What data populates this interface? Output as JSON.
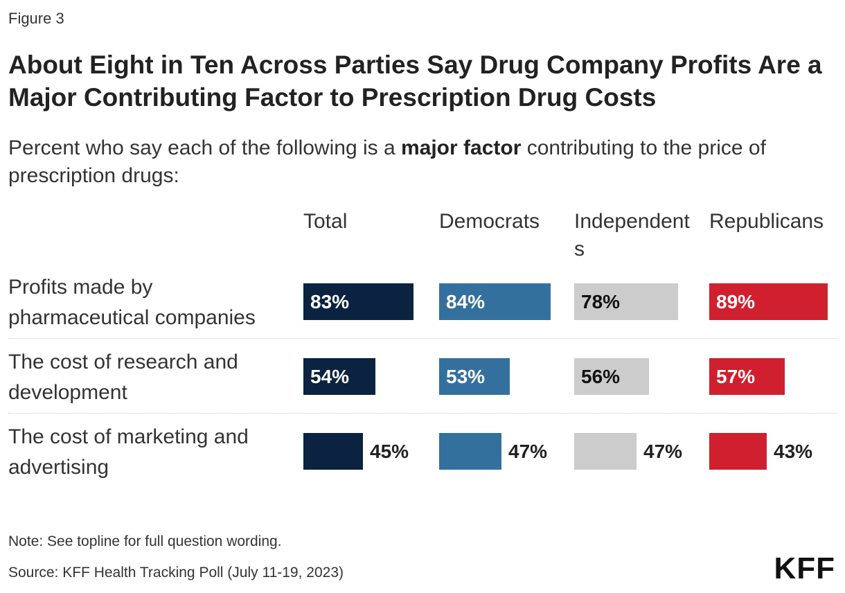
{
  "figure_label": "Figure 3",
  "title": "About Eight in Ten Across Parties Say Drug Company Profits Are a Major Contributing Factor to Prescription Drug Costs",
  "subtitle": {
    "before": "Percent who say each of the following is a ",
    "bold": "major factor",
    "after": " contributing to the price of prescription drugs:"
  },
  "note": "Note: See topline for full question wording.",
  "source": "Source: KFF Health Tracking Poll (July 11-19, 2023)",
  "logo": "KFF",
  "chart_data": {
    "type": "bar",
    "categories": [
      "Profits made by pharmaceutical companies",
      "The cost of research and development",
      "The cost of marketing and advertising"
    ],
    "series": [
      {
        "name": "Total",
        "values": [
          83,
          54,
          45
        ],
        "labels": [
          "83%",
          "54%",
          "45%"
        ],
        "color": "#0b2240",
        "label_color": "#ffffff"
      },
      {
        "name": "Democrats",
        "values": [
          84,
          53,
          47
        ],
        "labels": [
          "84%",
          "53%",
          "47%"
        ],
        "color": "#34709e",
        "label_color": "#ffffff"
      },
      {
        "name": "Independents",
        "values": [
          78,
          56,
          47
        ],
        "labels": [
          "78%",
          "56%",
          "47%"
        ],
        "color": "#cccccc",
        "label_color": "#111111"
      },
      {
        "name": "Republicans",
        "values": [
          89,
          57,
          43
        ],
        "labels": [
          "89%",
          "57%",
          "43%"
        ],
        "color": "#d01f2e",
        "label_color": "#ffffff"
      }
    ],
    "value_unit": "%",
    "xlim": [
      0,
      100
    ],
    "legend": "column headers",
    "grid": false
  }
}
